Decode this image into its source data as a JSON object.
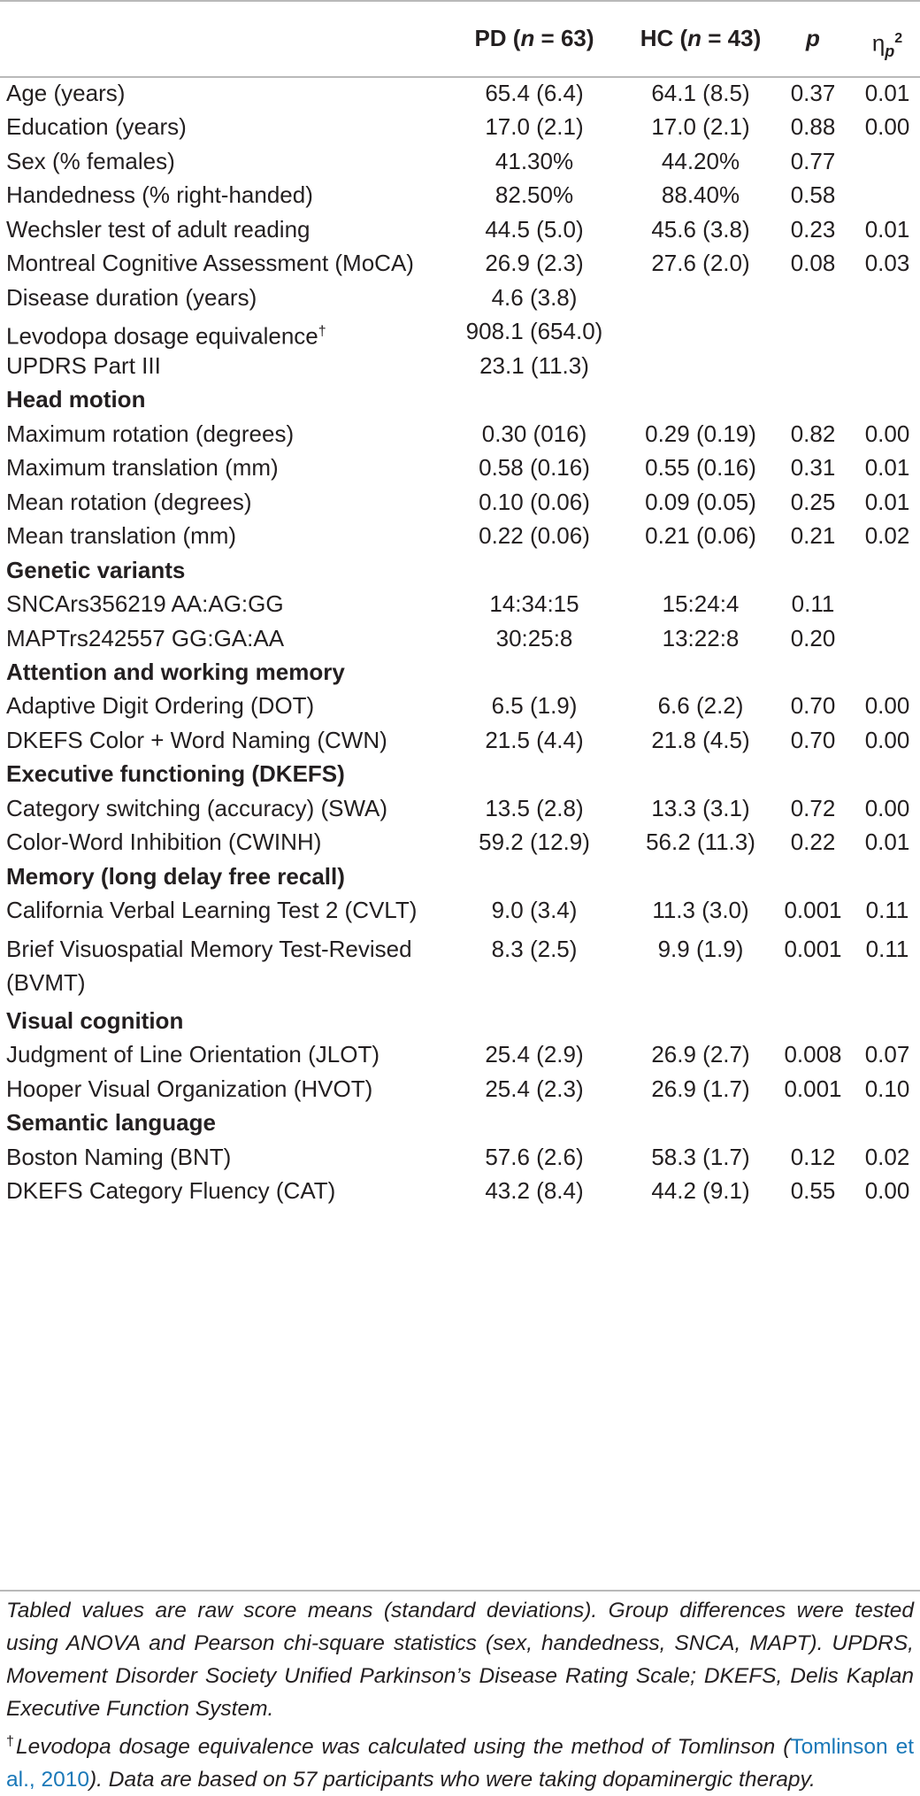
{
  "header": {
    "pd_label": "PD (",
    "pd_n": "n",
    "pd_rest": " = 63)",
    "hc_label": "HC (",
    "hc_n": "n",
    "hc_rest": " = 43)",
    "p_label": "p",
    "eta": "η",
    "eta_sub": "p",
    "eta_sup": "2"
  },
  "rows": [
    {
      "label": "Age (years)",
      "pd": "65.4 (6.4)",
      "hc": "64.1 (8.5)",
      "p": "0.37",
      "eta": "0.01"
    },
    {
      "label": "Education (years)",
      "pd": "17.0 (2.1)",
      "hc": "17.0 (2.1)",
      "p": "0.88",
      "eta": "0.00"
    },
    {
      "label": "Sex (% females)",
      "pd": "41.30%",
      "hc": "44.20%",
      "p": "0.77",
      "eta": ""
    },
    {
      "label": "Handedness (% right-handed)",
      "pd": "82.50%",
      "hc": "88.40%",
      "p": "0.58",
      "eta": ""
    },
    {
      "label": "Wechsler test of adult reading",
      "pd": "44.5 (5.0)",
      "hc": "45.6 (3.8)",
      "p": "0.23",
      "eta": "0.01"
    },
    {
      "label": "Montreal Cognitive Assessment (MoCA)",
      "pd": "26.9 (2.3)",
      "hc": "27.6 (2.0)",
      "p": "0.08",
      "eta": "0.03"
    },
    {
      "label": "Disease duration (years)",
      "pd": "4.6 (3.8)",
      "hc": "",
      "p": "",
      "eta": ""
    },
    {
      "label": "Levodopa dosage equivalence",
      "sup": "†",
      "pd": "908.1 (654.0)",
      "hc": "",
      "p": "",
      "eta": ""
    },
    {
      "label": "UPDRS Part III",
      "pd": "23.1 (11.3)",
      "hc": "",
      "p": "",
      "eta": ""
    },
    {
      "section": "Head motion"
    },
    {
      "label": "Maximum rotation (degrees)",
      "pd": "0.30 (016)",
      "hc": "0.29 (0.19)",
      "p": "0.82",
      "eta": "0.00"
    },
    {
      "label": "Maximum translation (mm)",
      "pd": "0.58 (0.16)",
      "hc": "0.55 (0.16)",
      "p": "0.31",
      "eta": "0.01"
    },
    {
      "label": "Mean rotation (degrees)",
      "pd": "0.10 (0.06)",
      "hc": "0.09 (0.05)",
      "p": "0.25",
      "eta": "0.01"
    },
    {
      "label": "Mean translation (mm)",
      "pd": "0.22 (0.06)",
      "hc": "0.21 (0.06)",
      "p": "0.21",
      "eta": "0.02"
    },
    {
      "section": "Genetic variants"
    },
    {
      "label": "SNCArs356219 AA:AG:GG",
      "pd": "14:34:15",
      "hc": "15:24:4",
      "p": "0.11",
      "eta": ""
    },
    {
      "label": "MAPTrs242557 GG:GA:AA",
      "pd": "30:25:8",
      "hc": "13:22:8",
      "p": "0.20",
      "eta": ""
    },
    {
      "section": "Attention and working memory"
    },
    {
      "label": "Adaptive Digit Ordering (DOT)",
      "pd": "6.5 (1.9)",
      "hc": "6.6 (2.2)",
      "p": "0.70",
      "eta": "0.00"
    },
    {
      "label": "DKEFS Color + Word Naming (CWN)",
      "pd": "21.5 (4.4)",
      "hc": "21.8 (4.5)",
      "p": "0.70",
      "eta": "0.00"
    },
    {
      "section": "Executive functioning (DKEFS)"
    },
    {
      "label": "Category switching (accuracy) (SWA)",
      "pd": "13.5 (2.8)",
      "hc": "13.3 (3.1)",
      "p": "0.72",
      "eta": "0.00"
    },
    {
      "label": "Color-Word Inhibition (CWINH)",
      "pd": "59.2 (12.9)",
      "hc": "56.2 (11.3)",
      "p": "0.22",
      "eta": "0.01"
    },
    {
      "section": "Memory (long delay free recall)"
    },
    {
      "label": "California Verbal Learning Test 2 (CVLT)",
      "pd": "9.0 (3.4)",
      "hc": "11.3 (3.0)",
      "p": "0.001",
      "eta": "0.11"
    },
    {
      "label": "Brief Visuospatial Memory Test-Revised",
      "label2": "(BVMT)",
      "pd": "8.3 (2.5)",
      "hc": "9.9 (1.9)",
      "p": "0.001",
      "eta": "0.11"
    },
    {
      "section": "Visual cognition"
    },
    {
      "label": "Judgment of Line Orientation (JLOT)",
      "pd": "25.4 (2.9)",
      "hc": "26.9 (2.7)",
      "p": "0.008",
      "eta": "0.07"
    },
    {
      "label": "Hooper Visual Organization (HVOT)",
      "pd": "25.4 (2.3)",
      "hc": "26.9 (1.7)",
      "p": "0.001",
      "eta": "0.10"
    },
    {
      "section": "Semantic language"
    },
    {
      "label": "Boston Naming (BNT)",
      "pd": "57.6 (2.6)",
      "hc": "58.3 (1.7)",
      "p": "0.12",
      "eta": "0.02"
    },
    {
      "label": "DKEFS Category Fluency (CAT)",
      "pd": "43.2 (8.4)",
      "hc": "44.2 (9.1)",
      "p": "0.55",
      "eta": "0.00"
    }
  ],
  "notes": {
    "main": "Tabled values are raw score means (standard deviations). Group differences were tested using ANOVA and Pearson chi-square statistics (sex, handedness, SNCA, MAPT). UPDRS, Movement Disorder Society Unified Parkinson’s Disease Rating Scale; DKEFS, Delis Kaplan Executive Function System.",
    "dagger": "†",
    "foot_a": "Levodopa dosage equivalence was calculated using the method of Tomlinson (",
    "foot_cite": "Tomlinson et al., 2010",
    "foot_b": "). Data are based on 57 participants who were taking dopaminergic therapy."
  }
}
